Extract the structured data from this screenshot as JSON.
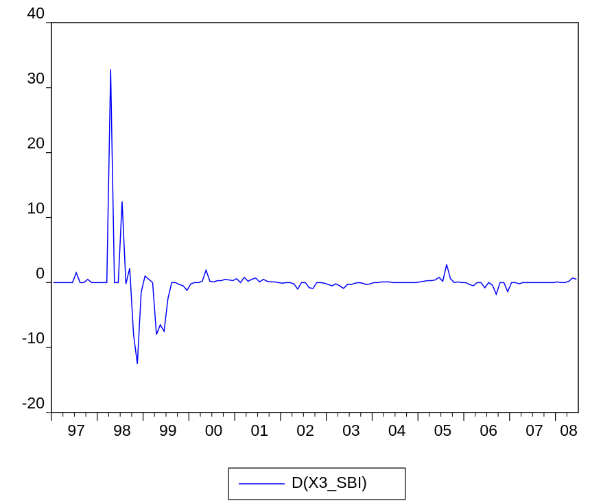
{
  "chart_data": {
    "type": "line",
    "categories": [
      null,
      null,
      null,
      null,
      null,
      null,
      "97",
      null,
      null,
      null,
      null,
      null,
      null,
      null,
      null,
      null,
      null,
      null,
      "98",
      null,
      null,
      null,
      null,
      null,
      null,
      null,
      null,
      null,
      null,
      null,
      "99",
      null,
      null,
      null,
      null,
      null,
      null,
      null,
      null,
      null,
      null,
      null,
      "00",
      null,
      null,
      null,
      null,
      null,
      null,
      null,
      null,
      null,
      null,
      null,
      "01",
      null,
      null,
      null,
      null,
      null,
      null,
      null,
      null,
      null,
      null,
      null,
      "02",
      null,
      null,
      null,
      null,
      null,
      null,
      null,
      null,
      null,
      null,
      null,
      "03",
      null,
      null,
      null,
      null,
      null,
      null,
      null,
      null,
      null,
      null,
      null,
      "04",
      null,
      null,
      null,
      null,
      null,
      null,
      null,
      null,
      null,
      null,
      null,
      "05",
      null,
      null,
      null,
      null,
      null,
      null,
      null,
      null,
      null,
      null,
      null,
      "06",
      null,
      null,
      null,
      null,
      null,
      null,
      null,
      null,
      null,
      null,
      null,
      "07",
      null,
      null,
      null,
      null,
      null,
      null,
      null,
      null,
      "08",
      null,
      null
    ],
    "series": [
      {
        "name": "D(X3_SBI)",
        "color": "#0000ff",
        "values": [
          0,
          0,
          0,
          0,
          0,
          0,
          1.5,
          0,
          0,
          0.5,
          0,
          0,
          0,
          0,
          0,
          32.8,
          0,
          0,
          12.5,
          -0.2,
          2.2,
          -8,
          -12.5,
          -1.5,
          1,
          0.5,
          0,
          -8,
          -6.5,
          -7.5,
          -2.5,
          0,
          0,
          -0.3,
          -0.5,
          -1.2,
          -0.2,
          0,
          0,
          0.2,
          1.9,
          0.2,
          0.1,
          0.3,
          0.3,
          0.5,
          0.4,
          0.3,
          0.6,
          0,
          0.8,
          0.2,
          0.5,
          0.7,
          0.1,
          0.5,
          0.2,
          0.1,
          0.1,
          0,
          -0.1,
          0,
          0,
          -0.2,
          -1,
          0,
          0,
          -0.8,
          -0.9,
          0,
          0,
          -0.1,
          -0.3,
          -0.5,
          -0.2,
          -0.5,
          -0.9,
          -0.3,
          -0.3,
          -0.1,
          0,
          -0.1,
          -0.3,
          -0.2,
          0,
          0,
          0.1,
          0.1,
          0.1,
          0,
          0,
          0,
          0,
          0,
          0,
          0,
          0.1,
          0.2,
          0.3,
          0.3,
          0.4,
          0.8,
          0.2,
          2.8,
          0.6,
          0,
          0.1,
          0,
          0,
          -0.3,
          -0.5,
          0,
          0,
          -0.8,
          0,
          -0.4,
          -1.8,
          0,
          0,
          -1.4,
          0,
          0,
          -0.2,
          0,
          0,
          0,
          0,
          0,
          0,
          0,
          0,
          0,
          0.1,
          0,
          0,
          0.2,
          0.7,
          0.5
        ]
      }
    ],
    "ylim": [
      -20,
      40
    ],
    "yticks": [
      -20,
      -10,
      0,
      10,
      20,
      30,
      40
    ]
  }
}
